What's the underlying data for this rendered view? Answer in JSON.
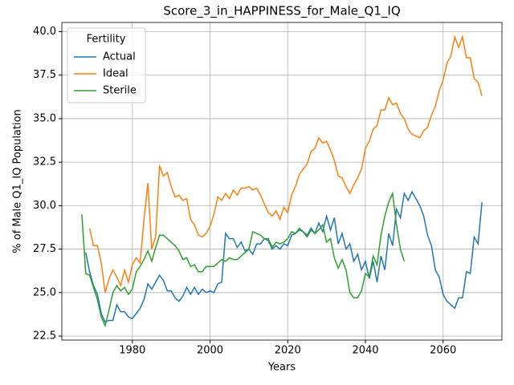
{
  "chart_data": {
    "type": "line",
    "title": "Score_3_in_HAPPINESS_for_Male_Q1_IQ",
    "xlabel": "Years",
    "ylabel": "% of Male Q1_IQ Population",
    "legend_title": "Fertility",
    "legend_loc": "upper left",
    "grid": true,
    "xlim": [
      1961.85,
      2075.15
    ],
    "ylim": [
      22.27,
      40.53
    ],
    "xticks": [
      1980,
      2000,
      2020,
      2040,
      2060
    ],
    "yticks": [
      {
        "value": 22.5,
        "label": "22.5"
      },
      {
        "value": 25,
        "label": "25.0"
      },
      {
        "value": 27.5,
        "label": "27.5"
      },
      {
        "value": 30,
        "label": "30.0"
      },
      {
        "value": 32.5,
        "label": "32.5"
      },
      {
        "value": 35,
        "label": "35.0"
      },
      {
        "value": 37.5,
        "label": "37.5"
      },
      {
        "value": 40,
        "label": "40.0"
      }
    ],
    "series": [
      {
        "name": "Actual",
        "color": "#1f77b4",
        "x": [
          1968,
          1969,
          1970,
          1971,
          1972,
          1973,
          1974,
          1975,
          1976,
          1977,
          1978,
          1979,
          1980,
          1981,
          1982,
          1983,
          1984,
          1985,
          1986,
          1987,
          1988,
          1989,
          1990,
          1991,
          1992,
          1993,
          1994,
          1995,
          1996,
          1997,
          1998,
          1999,
          2000,
          2001,
          2002,
          2003,
          2004,
          2005,
          2006,
          2007,
          2008,
          2009,
          2010,
          2011,
          2012,
          2013,
          2014,
          2015,
          2016,
          2017,
          2018,
          2019,
          2020,
          2021,
          2022,
          2023,
          2024,
          2025,
          2026,
          2027,
          2028,
          2029,
          2030,
          2031,
          2032,
          2033,
          2034,
          2035,
          2036,
          2037,
          2038,
          2039,
          2040,
          2041,
          2042,
          2043,
          2044,
          2045,
          2046,
          2047,
          2048,
          2049,
          2050,
          2051,
          2052,
          2053,
          2054,
          2055,
          2056,
          2057,
          2058,
          2059,
          2060,
          2061,
          2062,
          2063,
          2064,
          2065,
          2066,
          2067,
          2068,
          2069,
          2070
        ],
        "values": [
          27.3,
          26.2,
          25.4,
          24.9,
          23.8,
          23.3,
          23.4,
          23.4,
          24.3,
          23.9,
          23.9,
          23.6,
          23.5,
          23.8,
          24.1,
          24.6,
          25.5,
          25.2,
          25.6,
          26.0,
          25.7,
          25.1,
          25.1,
          24.7,
          24.5,
          24.8,
          25.3,
          24.9,
          25.3,
          24.9,
          25.2,
          25.0,
          25.1,
          25.0,
          25.5,
          25.6,
          28.4,
          28.1,
          28.1,
          27.6,
          27.9,
          27.4,
          27.5,
          27.2,
          27.8,
          27.8,
          28.1,
          28.0,
          27.5,
          27.7,
          27.5,
          27.8,
          27.7,
          28.3,
          28.4,
          28.6,
          28.5,
          28.3,
          28.7,
          28.4,
          29.0,
          28.5,
          29.4,
          28.6,
          29.3,
          27.8,
          28.4,
          27.5,
          27.8,
          26.8,
          27.2,
          26.3,
          26.8,
          25.8,
          26.8,
          25.6,
          27.1,
          26.3,
          28.4,
          27.7,
          29.8,
          29.3,
          30.7,
          30.3,
          30.8,
          30.4,
          30.0,
          29.4,
          28.3,
          27.7,
          26.3,
          25.9,
          24.9,
          24.5,
          24.3,
          24.1,
          24.7,
          24.7,
          26.2,
          26.1,
          28.2,
          27.8,
          30.2
        ]
      },
      {
        "name": "Ideal",
        "color": "#ff7f0e",
        "x": [
          1969,
          1970,
          1971,
          1972,
          1973,
          1974,
          1975,
          1976,
          1977,
          1978,
          1979,
          1980,
          1981,
          1982,
          1983,
          1984,
          1985,
          1986,
          1987,
          1988,
          1989,
          1990,
          1991,
          1992,
          1993,
          1994,
          1995,
          1996,
          1997,
          1998,
          1999,
          2000,
          2001,
          2002,
          2003,
          2004,
          2005,
          2006,
          2007,
          2008,
          2009,
          2010,
          2011,
          2012,
          2013,
          2014,
          2015,
          2016,
          2017,
          2018,
          2019,
          2020,
          2021,
          2022,
          2023,
          2024,
          2025,
          2026,
          2027,
          2028,
          2029,
          2030,
          2031,
          2032,
          2033,
          2034,
          2035,
          2036,
          2037,
          2038,
          2039,
          2040,
          2041,
          2042,
          2043,
          2044,
          2045,
          2046,
          2047,
          2048,
          2049,
          2050,
          2051,
          2052,
          2053,
          2054,
          2055,
          2056,
          2057,
          2058,
          2059,
          2060,
          2061,
          2062,
          2063,
          2064,
          2065,
          2066,
          2067,
          2068,
          2069,
          2070
        ],
        "values": [
          28.7,
          27.7,
          27.7,
          26.7,
          25.0,
          25.8,
          26.3,
          25.9,
          25.4,
          26.3,
          25.6,
          26.6,
          27.0,
          26.7,
          29.2,
          31.3,
          27.5,
          28.2,
          32.3,
          31.7,
          31.9,
          31.1,
          30.5,
          30.6,
          30.3,
          30.4,
          29.2,
          28.9,
          28.3,
          28.2,
          28.4,
          28.8,
          29.5,
          30.5,
          30.3,
          30.7,
          30.4,
          30.9,
          30.6,
          31.0,
          31.0,
          31.1,
          30.9,
          31.0,
          30.6,
          30.1,
          29.6,
          29.4,
          29.7,
          29.2,
          29.9,
          29.6,
          30.6,
          31.1,
          31.8,
          32.1,
          32.4,
          33.1,
          33.3,
          33.9,
          33.6,
          33.7,
          33.2,
          32.6,
          31.7,
          31.6,
          31.1,
          30.7,
          31.2,
          31.6,
          32.1,
          33.3,
          33.7,
          34.4,
          34.6,
          35.5,
          35.5,
          36.2,
          35.8,
          35.9,
          35.3,
          35.0,
          34.4,
          34.1,
          34.0,
          33.9,
          34.3,
          34.5,
          35.2,
          35.7,
          36.6,
          37.2,
          38.2,
          38.6,
          39.7,
          39.1,
          39.7,
          38.5,
          38.5,
          37.3,
          37.1,
          36.3
        ]
      },
      {
        "name": "Sterile",
        "color": "#2ca02c",
        "x": [
          1967,
          1968,
          1969,
          1970,
          1971,
          1972,
          1973,
          1974,
          1975,
          1976,
          1977,
          1978,
          1979,
          1980,
          1981,
          1982,
          1983,
          1984,
          1985,
          1986,
          1987,
          1988,
          1989,
          1990,
          1991,
          1992,
          1993,
          1994,
          1995,
          1996,
          1997,
          1998,
          1999,
          2000,
          2001,
          2002,
          2003,
          2004,
          2005,
          2006,
          2007,
          2008,
          2009,
          2010,
          2011,
          2012,
          2013,
          2014,
          2015,
          2016,
          2017,
          2018,
          2019,
          2020,
          2021,
          2022,
          2023,
          2024,
          2025,
          2026,
          2027,
          2028,
          2029,
          2030,
          2031,
          2032,
          2033,
          2034,
          2035,
          2036,
          2037,
          2038,
          2039,
          2040,
          2041,
          2042,
          2043,
          2044,
          2045,
          2046,
          2047,
          2048,
          2049,
          2050
        ],
        "values": [
          29.5,
          26.1,
          26.0,
          25.3,
          24.6,
          23.6,
          23.1,
          24.0,
          25.0,
          25.4,
          25.1,
          25.3,
          24.9,
          25.2,
          26.2,
          26.5,
          26.9,
          27.4,
          26.8,
          27.6,
          28.3,
          28.3,
          28.1,
          27.9,
          27.7,
          27.4,
          26.9,
          27.0,
          26.5,
          26.6,
          26.2,
          26.2,
          26.5,
          26.5,
          26.5,
          26.7,
          26.9,
          26.8,
          27.0,
          26.9,
          26.9,
          27.1,
          27.3,
          27.5,
          28.5,
          28.4,
          28.3,
          28.1,
          28.1,
          27.6,
          27.9,
          27.8,
          27.9,
          28.1,
          28.5,
          28.4,
          28.7,
          28.5,
          28.2,
          28.6,
          28.4,
          28.6,
          28.9,
          27.9,
          28.1,
          27.0,
          26.4,
          26.9,
          26.3,
          25.0,
          24.7,
          24.7,
          25.1,
          26.1,
          25.9,
          27.1,
          26.6,
          28.3,
          29.4,
          30.2,
          30.7,
          28.9,
          27.5,
          26.8
        ]
      }
    ]
  }
}
